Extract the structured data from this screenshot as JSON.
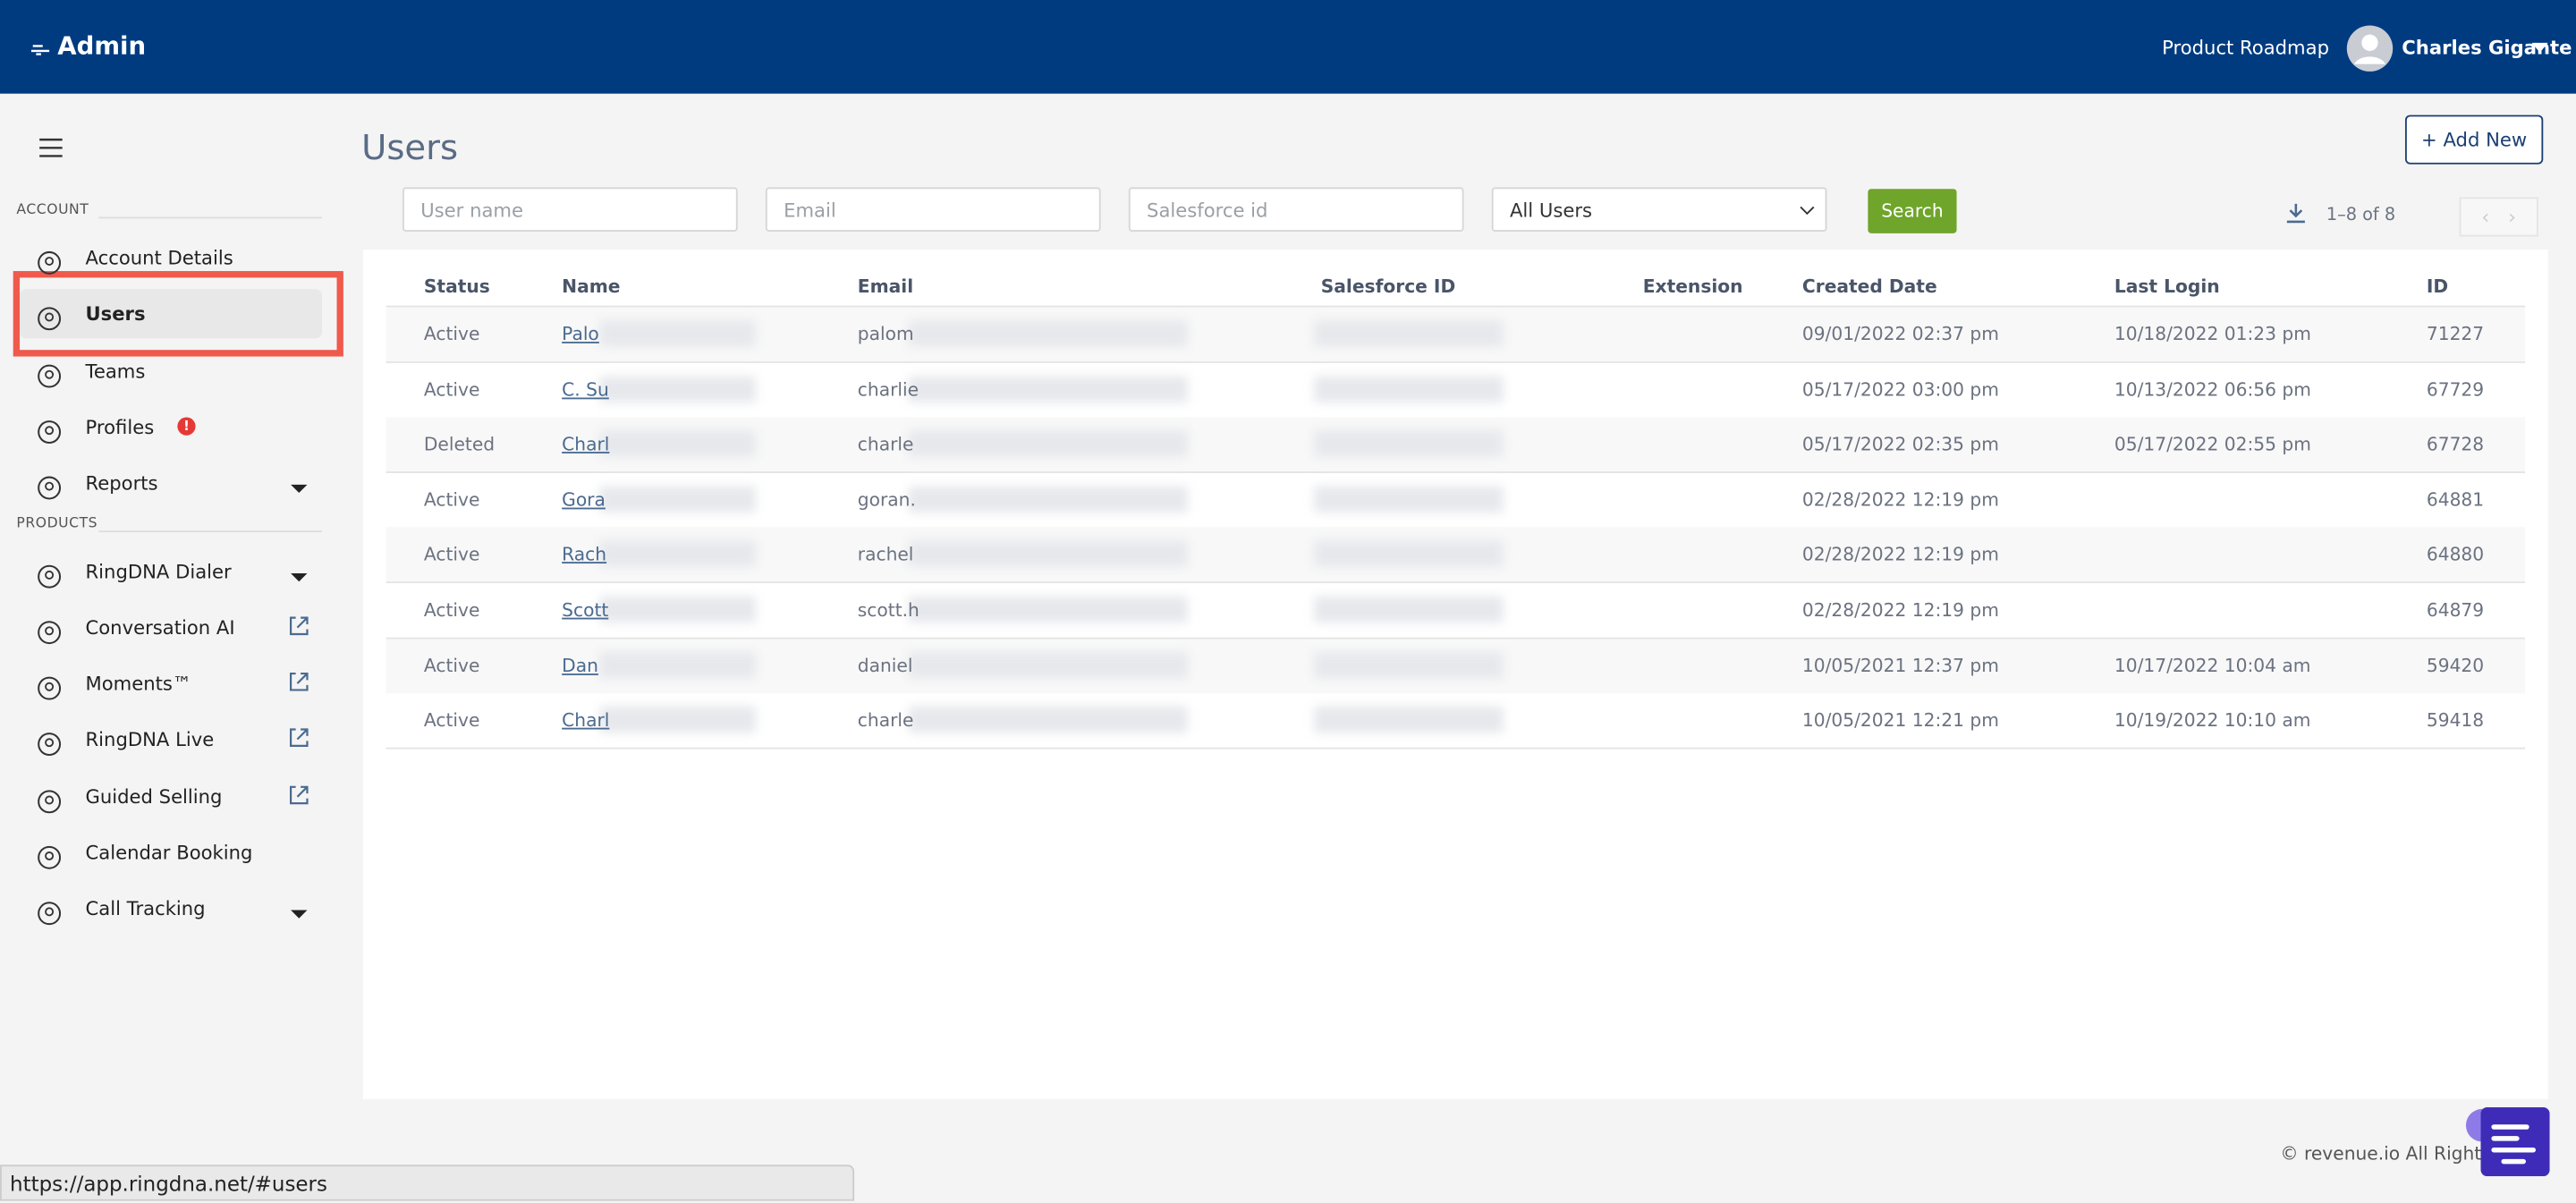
{
  "header": {
    "brand": "Admin",
    "roadmap": "Product Roadmap",
    "user": "Charles Gigante"
  },
  "sidebar": {
    "sections": [
      {
        "label": "ACCOUNT",
        "items": [
          {
            "label": "Account Details"
          },
          {
            "label": "Users",
            "active": true
          },
          {
            "label": "Teams"
          },
          {
            "label": "Profiles",
            "badge": "!"
          },
          {
            "label": "Reports",
            "arrow": "dropdown"
          }
        ]
      },
      {
        "label": "PRODUCTS",
        "items": [
          {
            "label": "RingDNA Dialer",
            "arrow": "dropdown"
          },
          {
            "label": "Conversation AI",
            "arrow": "external"
          },
          {
            "label": "Moments™",
            "arrow": "external"
          },
          {
            "label": "RingDNA Live",
            "arrow": "external"
          },
          {
            "label": "Guided Selling",
            "arrow": "external"
          },
          {
            "label": "Calendar Booking"
          },
          {
            "label": "Call Tracking",
            "arrow": "dropdown"
          }
        ]
      }
    ]
  },
  "page": {
    "title": "Users",
    "add_button": "Add New",
    "filters": {
      "username": "User name",
      "email": "Email",
      "salesforce": "Salesforce id",
      "select": "All Users",
      "search": "Search"
    },
    "pagination": "1–8 of 8"
  },
  "table": {
    "columns": [
      "Status",
      "Name",
      "Email",
      "Salesforce ID",
      "Extension",
      "Created Date",
      "Last Login",
      "ID"
    ],
    "rows": [
      [
        "Active",
        "Palo",
        "palom",
        "",
        "",
        "09/01/2022 02:37 pm",
        "10/18/2022 01:23 pm",
        "71227"
      ],
      [
        "Active",
        "C. Su",
        "charlie",
        "",
        "",
        "05/17/2022 03:00 pm",
        "10/13/2022 06:56 pm",
        "67729"
      ],
      [
        "Deleted",
        "Charl",
        "charle",
        "",
        "",
        "05/17/2022 02:35 pm",
        "05/17/2022 02:55 pm",
        "67728"
      ],
      [
        "Active",
        "Gora",
        "goran.",
        "",
        "",
        "02/28/2022 12:19 pm",
        "",
        "64881"
      ],
      [
        "Active",
        "Rach",
        "rachel",
        "",
        "",
        "02/28/2022 12:19 pm",
        "",
        "64880"
      ],
      [
        "Active",
        "Scott",
        "scott.h",
        "",
        "",
        "02/28/2022 12:19 pm",
        "",
        "64879"
      ],
      [
        "Active",
        "Dan",
        "daniel",
        "",
        "",
        "10/05/2021 12:37 pm",
        "10/17/2022 10:04 am",
        "59420"
      ],
      [
        "Active",
        "Charl",
        "charle",
        "",
        "",
        "10/05/2021 12:21 pm",
        "10/19/2022 10:10 am",
        "59418"
      ]
    ]
  },
  "footer": {
    "copyright": "© revenue.io All Rights R"
  },
  "status_bar": {
    "url": "https://app.ringdna.net/#users"
  }
}
